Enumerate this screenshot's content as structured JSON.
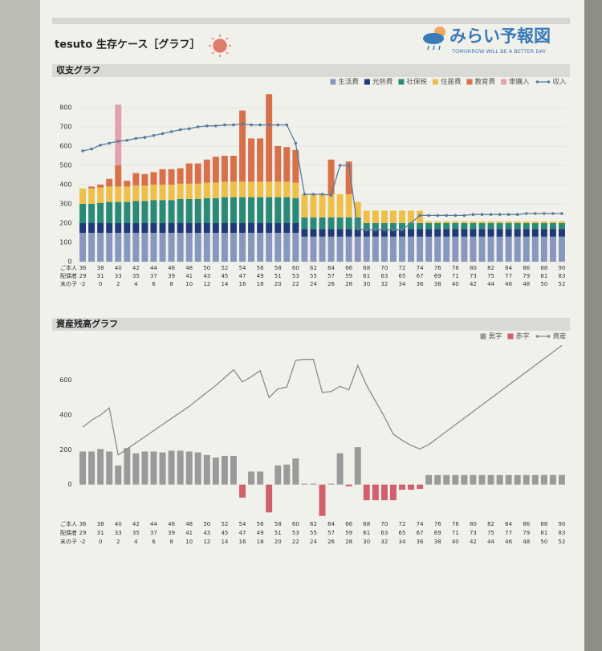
{
  "header": {
    "user": "tesuto",
    "title": "生存ケース［グラフ］",
    "logo": "みらい予報図",
    "tagline": "TOMORROW WILL BE A BETTER DAY"
  },
  "chart_data": [
    {
      "type": "bar",
      "stacked": true,
      "title": "収支グラフ",
      "ylim": [
        0,
        900
      ],
      "yticks": [
        0,
        100,
        200,
        300,
        400,
        500,
        600,
        700,
        800
      ],
      "grid": true,
      "legend": "top-right",
      "category_label": "ご本人",
      "categories": [
        36,
        null,
        38,
        null,
        40,
        null,
        42,
        null,
        44,
        null,
        46,
        null,
        48,
        null,
        50,
        null,
        52,
        null,
        54,
        null,
        56,
        null,
        58,
        null,
        60,
        null,
        62,
        null,
        64,
        null,
        66,
        null,
        68,
        null,
        70,
        null,
        72,
        null,
        74,
        null,
        76,
        null,
        78,
        null,
        80,
        null,
        82,
        null,
        84,
        null,
        86,
        null,
        88,
        null,
        90
      ],
      "category_rows": [
        {
          "name": "配偶者",
          "labels": [
            29,
            null,
            31,
            null,
            33,
            null,
            35,
            null,
            37,
            null,
            39,
            null,
            41,
            null,
            43,
            null,
            45,
            null,
            47,
            null,
            49,
            null,
            51,
            null,
            53,
            null,
            55,
            null,
            57,
            null,
            59,
            null,
            61,
            null,
            63,
            null,
            65,
            null,
            67,
            null,
            69,
            null,
            71,
            null,
            73,
            null,
            75,
            null,
            77,
            null,
            79,
            null,
            81,
            null,
            83
          ]
        },
        {
          "name": "末の子",
          "labels": [
            -2,
            null,
            0,
            null,
            2,
            null,
            4,
            null,
            6,
            null,
            8,
            null,
            10,
            null,
            12,
            null,
            14,
            null,
            16,
            null,
            18,
            null,
            20,
            null,
            22,
            null,
            24,
            null,
            26,
            null,
            28,
            null,
            30,
            null,
            32,
            null,
            34,
            null,
            36,
            null,
            38,
            null,
            40,
            null,
            42,
            null,
            44,
            null,
            46,
            null,
            48,
            null,
            50,
            null,
            52
          ]
        }
      ],
      "series": [
        {
          "name": "生活費",
          "color": "#8797bd",
          "values": [
            150,
            150,
            150,
            150,
            150,
            150,
            150,
            150,
            150,
            150,
            150,
            150,
            150,
            150,
            150,
            150,
            150,
            150,
            150,
            150,
            150,
            150,
            150,
            150,
            150,
            130,
            130,
            130,
            130,
            130,
            130,
            130,
            130,
            130,
            130,
            130,
            130,
            130,
            130,
            130,
            130,
            130,
            130,
            130,
            130,
            130,
            130,
            130,
            130,
            130,
            130,
            130,
            130,
            130,
            130
          ]
        },
        {
          "name": "光熱費",
          "color": "#1f3a78",
          "values": [
            50,
            50,
            50,
            50,
            50,
            50,
            50,
            50,
            50,
            50,
            50,
            50,
            50,
            50,
            50,
            50,
            50,
            50,
            50,
            50,
            50,
            50,
            50,
            50,
            50,
            40,
            40,
            40,
            40,
            40,
            40,
            40,
            40,
            40,
            40,
            40,
            40,
            40,
            40,
            40,
            40,
            40,
            40,
            40,
            40,
            40,
            40,
            40,
            40,
            40,
            40,
            40,
            40,
            40,
            40
          ]
        },
        {
          "name": "社保税",
          "color": "#2a8a78",
          "values": [
            100,
            100,
            105,
            110,
            110,
            110,
            115,
            115,
            120,
            120,
            120,
            125,
            125,
            125,
            130,
            130,
            135,
            135,
            135,
            135,
            135,
            135,
            135,
            135,
            130,
            60,
            60,
            60,
            60,
            60,
            60,
            60,
            30,
            30,
            30,
            30,
            30,
            30,
            30,
            30,
            30,
            30,
            30,
            30,
            30,
            30,
            30,
            30,
            30,
            30,
            30,
            30,
            30,
            30,
            30
          ]
        },
        {
          "name": "住居費",
          "color": "#eec04a",
          "values": [
            80,
            80,
            80,
            80,
            80,
            80,
            80,
            80,
            80,
            80,
            80,
            80,
            80,
            80,
            80,
            80,
            80,
            80,
            80,
            80,
            80,
            80,
            80,
            80,
            80,
            120,
            120,
            120,
            120,
            120,
            120,
            80,
            65,
            65,
            65,
            65,
            65,
            65,
            65,
            10,
            10,
            10,
            10,
            10,
            10,
            10,
            10,
            10,
            10,
            10,
            10,
            10,
            10,
            10,
            10
          ]
        },
        {
          "name": "教育費",
          "color": "#d8704a",
          "values": [
            0,
            10,
            15,
            40,
            110,
            30,
            65,
            60,
            65,
            80,
            80,
            80,
            105,
            105,
            120,
            135,
            135,
            135,
            370,
            225,
            225,
            455,
            185,
            180,
            170,
            0,
            0,
            0,
            180,
            0,
            170,
            0,
            0,
            0,
            0,
            0,
            0,
            0,
            0,
            0,
            0,
            0,
            0,
            0,
            0,
            0,
            0,
            0,
            0,
            0,
            0,
            0,
            0,
            0,
            0
          ]
        },
        {
          "name": "車購入",
          "color": "#e2a2aa",
          "values": [
            0,
            0,
            0,
            0,
            315,
            0,
            0,
            0,
            0,
            0,
            0,
            0,
            0,
            0,
            0,
            0,
            0,
            0,
            0,
            0,
            0,
            0,
            0,
            0,
            0,
            0,
            0,
            0,
            0,
            0,
            0,
            0,
            0,
            0,
            0,
            0,
            0,
            0,
            0,
            0,
            0,
            0,
            0,
            0,
            0,
            0,
            0,
            0,
            0,
            0,
            0,
            0,
            0,
            0,
            0
          ]
        },
        {
          "name": "収入",
          "type": "line",
          "markers": true,
          "color": "#5a7a9a",
          "values": [
            575,
            585,
            605,
            615,
            625,
            630,
            640,
            645,
            655,
            665,
            675,
            685,
            690,
            700,
            705,
            705,
            710,
            710,
            715,
            710,
            710,
            710,
            710,
            710,
            615,
            350,
            350,
            350,
            345,
            500,
            500,
            170,
            165,
            165,
            165,
            165,
            165,
            200,
            240,
            240,
            240,
            240,
            240,
            240,
            245,
            245,
            245,
            245,
            245,
            245,
            250,
            250,
            250,
            250,
            250
          ]
        }
      ]
    },
    {
      "type": "bar",
      "stacked": true,
      "title": "資産残高グラフ",
      "ylim": [
        -200,
        820
      ],
      "yticks": [
        0,
        200,
        400,
        600
      ],
      "grid": false,
      "legend": "top-right",
      "category_label": "ご本人",
      "categories": [
        36,
        null,
        38,
        null,
        40,
        null,
        42,
        null,
        44,
        null,
        46,
        null,
        48,
        null,
        50,
        null,
        52,
        null,
        54,
        null,
        56,
        null,
        58,
        null,
        60,
        null,
        62,
        null,
        64,
        null,
        66,
        null,
        68,
        null,
        70,
        null,
        72,
        null,
        74,
        null,
        76,
        null,
        78,
        null,
        80,
        null,
        82,
        null,
        84,
        null,
        86,
        null,
        88,
        null,
        90
      ],
      "category_rows": [
        {
          "name": "配偶者",
          "labels": [
            29,
            null,
            31,
            null,
            33,
            null,
            35,
            null,
            37,
            null,
            39,
            null,
            41,
            null,
            43,
            null,
            45,
            null,
            47,
            null,
            49,
            null,
            51,
            null,
            53,
            null,
            55,
            null,
            57,
            null,
            59,
            null,
            61,
            null,
            63,
            null,
            65,
            null,
            67,
            null,
            69,
            null,
            71,
            null,
            73,
            null,
            75,
            null,
            77,
            null,
            79,
            null,
            81,
            null,
            83
          ]
        },
        {
          "name": "末の子",
          "labels": [
            -2,
            null,
            0,
            null,
            2,
            null,
            4,
            null,
            6,
            null,
            8,
            null,
            10,
            null,
            12,
            null,
            14,
            null,
            16,
            null,
            18,
            null,
            20,
            null,
            22,
            null,
            24,
            null,
            26,
            null,
            28,
            null,
            30,
            null,
            32,
            null,
            34,
            null,
            36,
            null,
            38,
            null,
            40,
            null,
            42,
            null,
            44,
            null,
            46,
            null,
            48,
            null,
            50,
            null,
            52
          ]
        }
      ],
      "series": [
        {
          "name": "黒字",
          "color": "#9a9a9a",
          "values": [
            190,
            190,
            205,
            190,
            110,
            210,
            180,
            190,
            190,
            185,
            195,
            195,
            190,
            185,
            170,
            155,
            165,
            165,
            null,
            75,
            75,
            null,
            110,
            115,
            150,
            5,
            5,
            null,
            5,
            180,
            null,
            215,
            null,
            null,
            null,
            null,
            null,
            null,
            null,
            55,
            55,
            55,
            55,
            55,
            55,
            55,
            55,
            55,
            55,
            55,
            55,
            55,
            55,
            55,
            55
          ]
        },
        {
          "name": "赤字",
          "color": "#d0606e",
          "values": [
            null,
            null,
            null,
            null,
            null,
            null,
            null,
            null,
            null,
            null,
            null,
            null,
            null,
            null,
            null,
            null,
            null,
            null,
            -75,
            null,
            null,
            -160,
            null,
            null,
            null,
            null,
            null,
            -180,
            null,
            null,
            -10,
            null,
            -90,
            -90,
            -90,
            -90,
            -30,
            -30,
            -25,
            null,
            null,
            null,
            null,
            null,
            null,
            null,
            null,
            null,
            null,
            null,
            null,
            null,
            null,
            null,
            null
          ]
        },
        {
          "name": "資産",
          "type": "line",
          "markers": false,
          "color": "#8a8a8a",
          "values": [
            330,
            370,
            400,
            440,
            170,
            205,
            240,
            275,
            310,
            345,
            380,
            415,
            450,
            490,
            530,
            570,
            615,
            660,
            590,
            620,
            655,
            500,
            550,
            560,
            715,
            720,
            720,
            530,
            535,
            565,
            545,
            685,
            570,
            480,
            390,
            290,
            255,
            225,
            205,
            230,
            268,
            306,
            344,
            382,
            420,
            458,
            496,
            534,
            572,
            610,
            648,
            686,
            724,
            762,
            800
          ]
        }
      ]
    }
  ]
}
